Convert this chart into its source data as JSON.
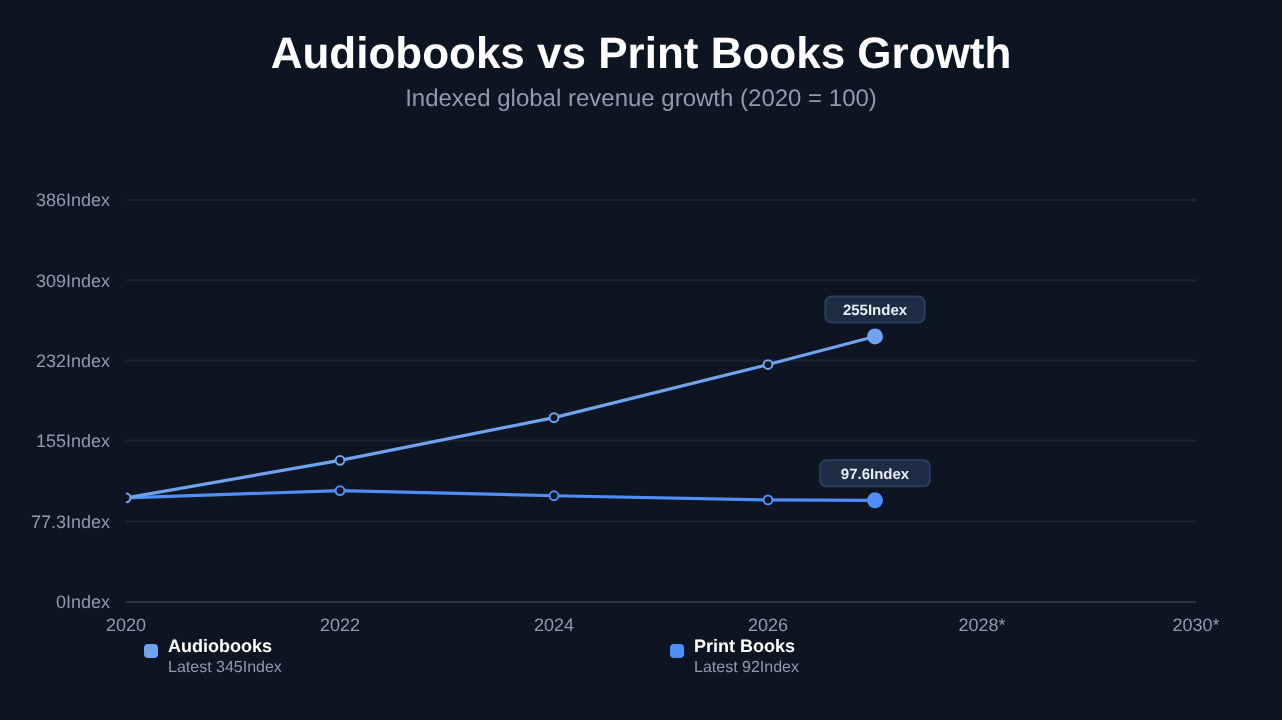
{
  "chart_data": {
    "type": "line",
    "title": "Audiobooks vs Print Books Growth",
    "subtitle": "Indexed global revenue growth (2020 = 100)",
    "x": [
      2020,
      2022,
      2024,
      2026,
      2027
    ],
    "xlim": [
      2020,
      2030
    ],
    "xticks": [
      2020,
      2022,
      2024,
      2026,
      {
        "value": 2028,
        "label": "2028*"
      },
      {
        "value": 2030,
        "label": "2030*"
      }
    ],
    "ylim": [
      0,
      386
    ],
    "yticks": [
      {
        "value": 0,
        "label": "0Index"
      },
      {
        "value": 77.3,
        "label": "77.3Index"
      },
      {
        "value": 155,
        "label": "155Index"
      },
      {
        "value": 232,
        "label": "232Index"
      },
      {
        "value": 309,
        "label": "309Index"
      },
      {
        "value": 386,
        "label": "386Index"
      }
    ],
    "series": [
      {
        "name": "Audiobooks",
        "color": "#6fa3ef",
        "values": [
          100,
          136,
          177,
          228,
          255
        ],
        "value_labels": [
          null,
          null,
          null,
          null,
          "255Index"
        ]
      },
      {
        "name": "Print Books",
        "color": "#4f8ff7",
        "values": [
          100,
          107,
          102,
          98,
          97.6
        ],
        "value_labels": [
          null,
          null,
          null,
          null,
          "97.6Index"
        ]
      }
    ],
    "annotations": [
      "Latest 345Index",
      "Latest 92Index"
    ],
    "grid": "y",
    "legend": "bottom",
    "marker": "circle",
    "line_style": "solid"
  }
}
